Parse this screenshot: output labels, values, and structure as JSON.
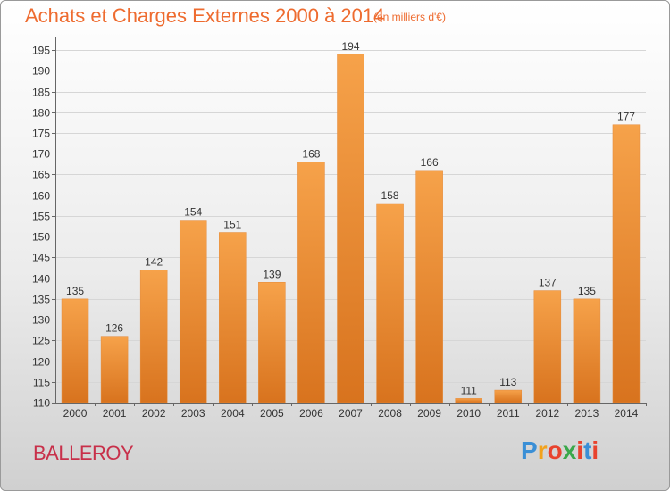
{
  "title": "Achats et Charges Externes 2000 à 2014",
  "subtitle": "(en milliers d'€)",
  "place": "BALLEROY",
  "logo": {
    "letters": [
      "P",
      "r",
      "o",
      "x",
      "i",
      "t",
      "i"
    ],
    "colors": [
      "#3a8fd6",
      "#f2a21c",
      "#e8432e",
      "#3aa84a",
      "#e8432e",
      "#3a8fd6",
      "#e8432e"
    ]
  },
  "chart_data": {
    "type": "bar",
    "categories": [
      "2000",
      "2001",
      "2002",
      "2003",
      "2004",
      "2005",
      "2006",
      "2007",
      "2008",
      "2009",
      "2010",
      "2011",
      "2012",
      "2013",
      "2014"
    ],
    "values": [
      135,
      126,
      142,
      154,
      151,
      139,
      168,
      194,
      158,
      166,
      111,
      113,
      137,
      135,
      177
    ],
    "ylim": [
      110,
      195
    ],
    "yticks": [
      110,
      115,
      120,
      125,
      130,
      135,
      140,
      145,
      150,
      155,
      160,
      165,
      170,
      175,
      180,
      185,
      190,
      195
    ],
    "grid": true,
    "bar_color": "#f0882e"
  }
}
